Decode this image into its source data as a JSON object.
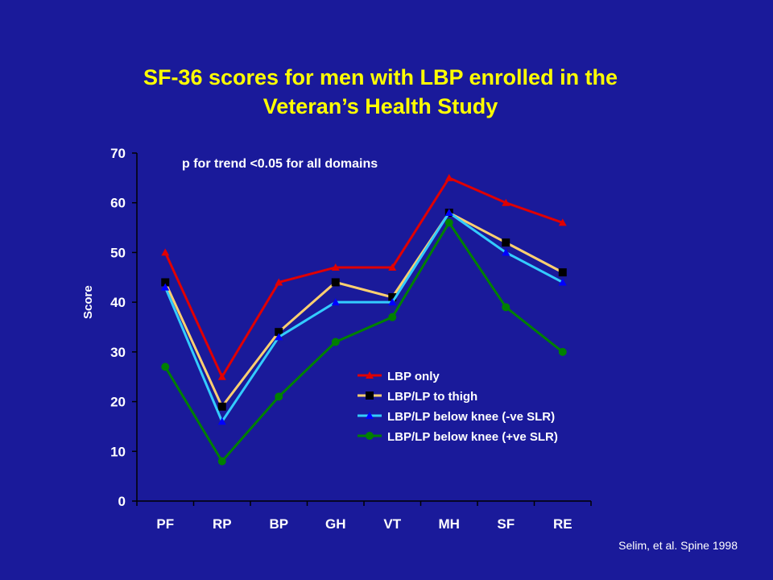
{
  "slide": {
    "title_line1": "SF-36 scores for men with LBP enrolled in the",
    "title_line2": "Veteran’s Health Study",
    "citation": "Selim, et al. Spine 1998"
  },
  "colors": {
    "background": "#1a1a9a",
    "title": "#ffff00",
    "text": "#ffffff",
    "axis": "#000000"
  },
  "chart_data": {
    "type": "line",
    "title": "",
    "annotation": "p for trend <0.05 for all domains",
    "xlabel": "",
    "ylabel": "Score",
    "categories": [
      "PF",
      "RP",
      "BP",
      "GH",
      "VT",
      "MH",
      "SF",
      "RE"
    ],
    "ylim": [
      0,
      70
    ],
    "yticks": [
      0,
      10,
      20,
      30,
      40,
      50,
      60,
      70
    ],
    "grid": false,
    "legend_position": "lower-right",
    "series": [
      {
        "name": "LBP only",
        "color": "#e00000",
        "line_color": "#e00000",
        "marker": "triangle",
        "values": [
          50,
          25,
          44,
          47,
          47,
          65,
          60,
          56
        ]
      },
      {
        "name": "LBP/LP to thigh",
        "color": "#000000",
        "line_color": "#ffd070",
        "marker": "square",
        "values": [
          44,
          19,
          34,
          44,
          41,
          58,
          52,
          46
        ]
      },
      {
        "name": "LBP/LP below knee (-ve SLR)",
        "color": "#0000ff",
        "line_color": "#33ccff",
        "marker": "triangle",
        "values": [
          43,
          16,
          33,
          40,
          40,
          58,
          50,
          44
        ]
      },
      {
        "name": "LBP/LP below knee (+ve SLR)",
        "color": "#008000",
        "line_color": "#008000",
        "marker": "circle",
        "values": [
          27,
          8,
          21,
          32,
          37,
          56,
          39,
          30
        ]
      }
    ]
  }
}
